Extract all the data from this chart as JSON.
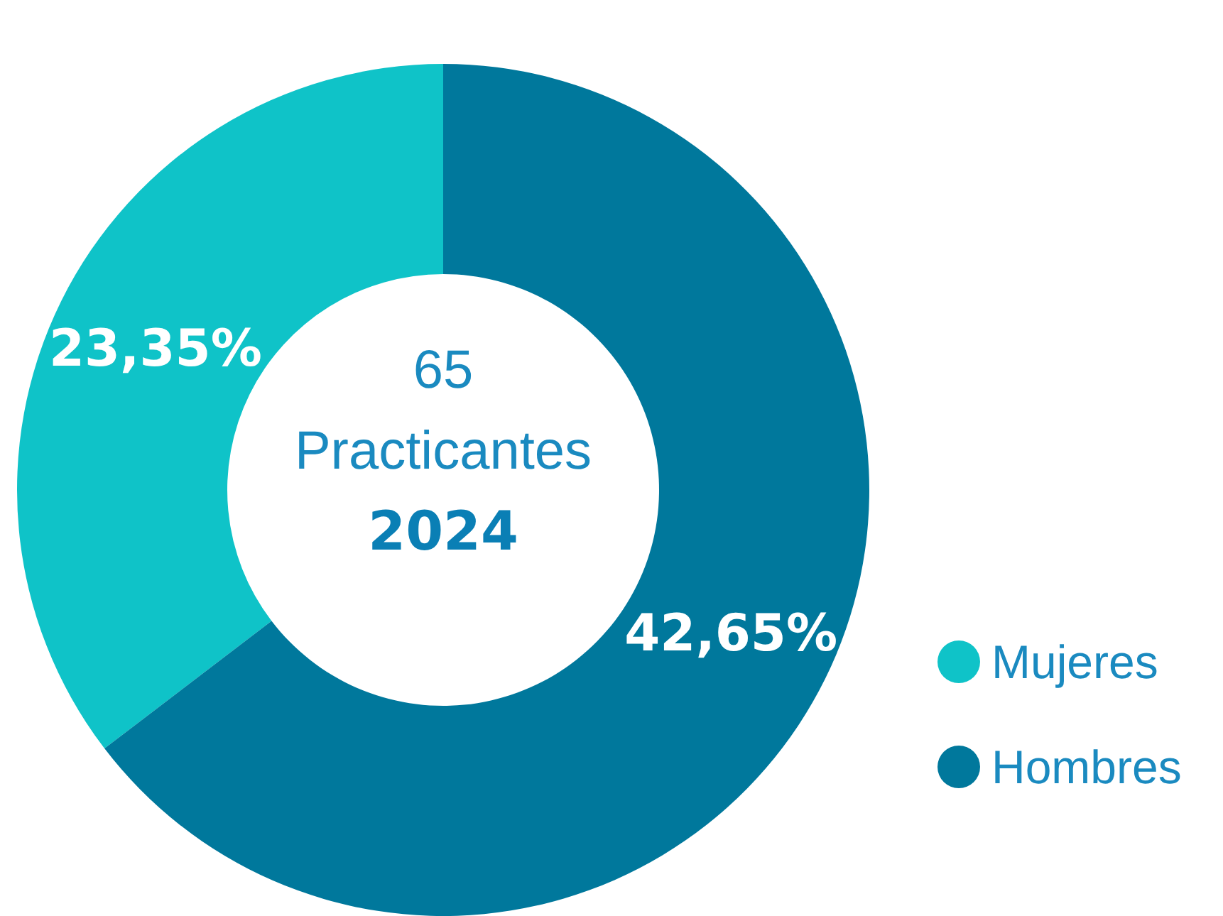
{
  "chart_data": {
    "type": "donut",
    "categories": [
      "Mujeres",
      "Hombres"
    ],
    "values": [
      23.35,
      42.65
    ],
    "colors": [
      "#0fc3c8",
      "#00789c"
    ],
    "value_labels": [
      "23,35%",
      "42,65%"
    ],
    "annotations": [
      "65",
      "Practicantes",
      "2024"
    ],
    "legend": "bottom right"
  }
}
